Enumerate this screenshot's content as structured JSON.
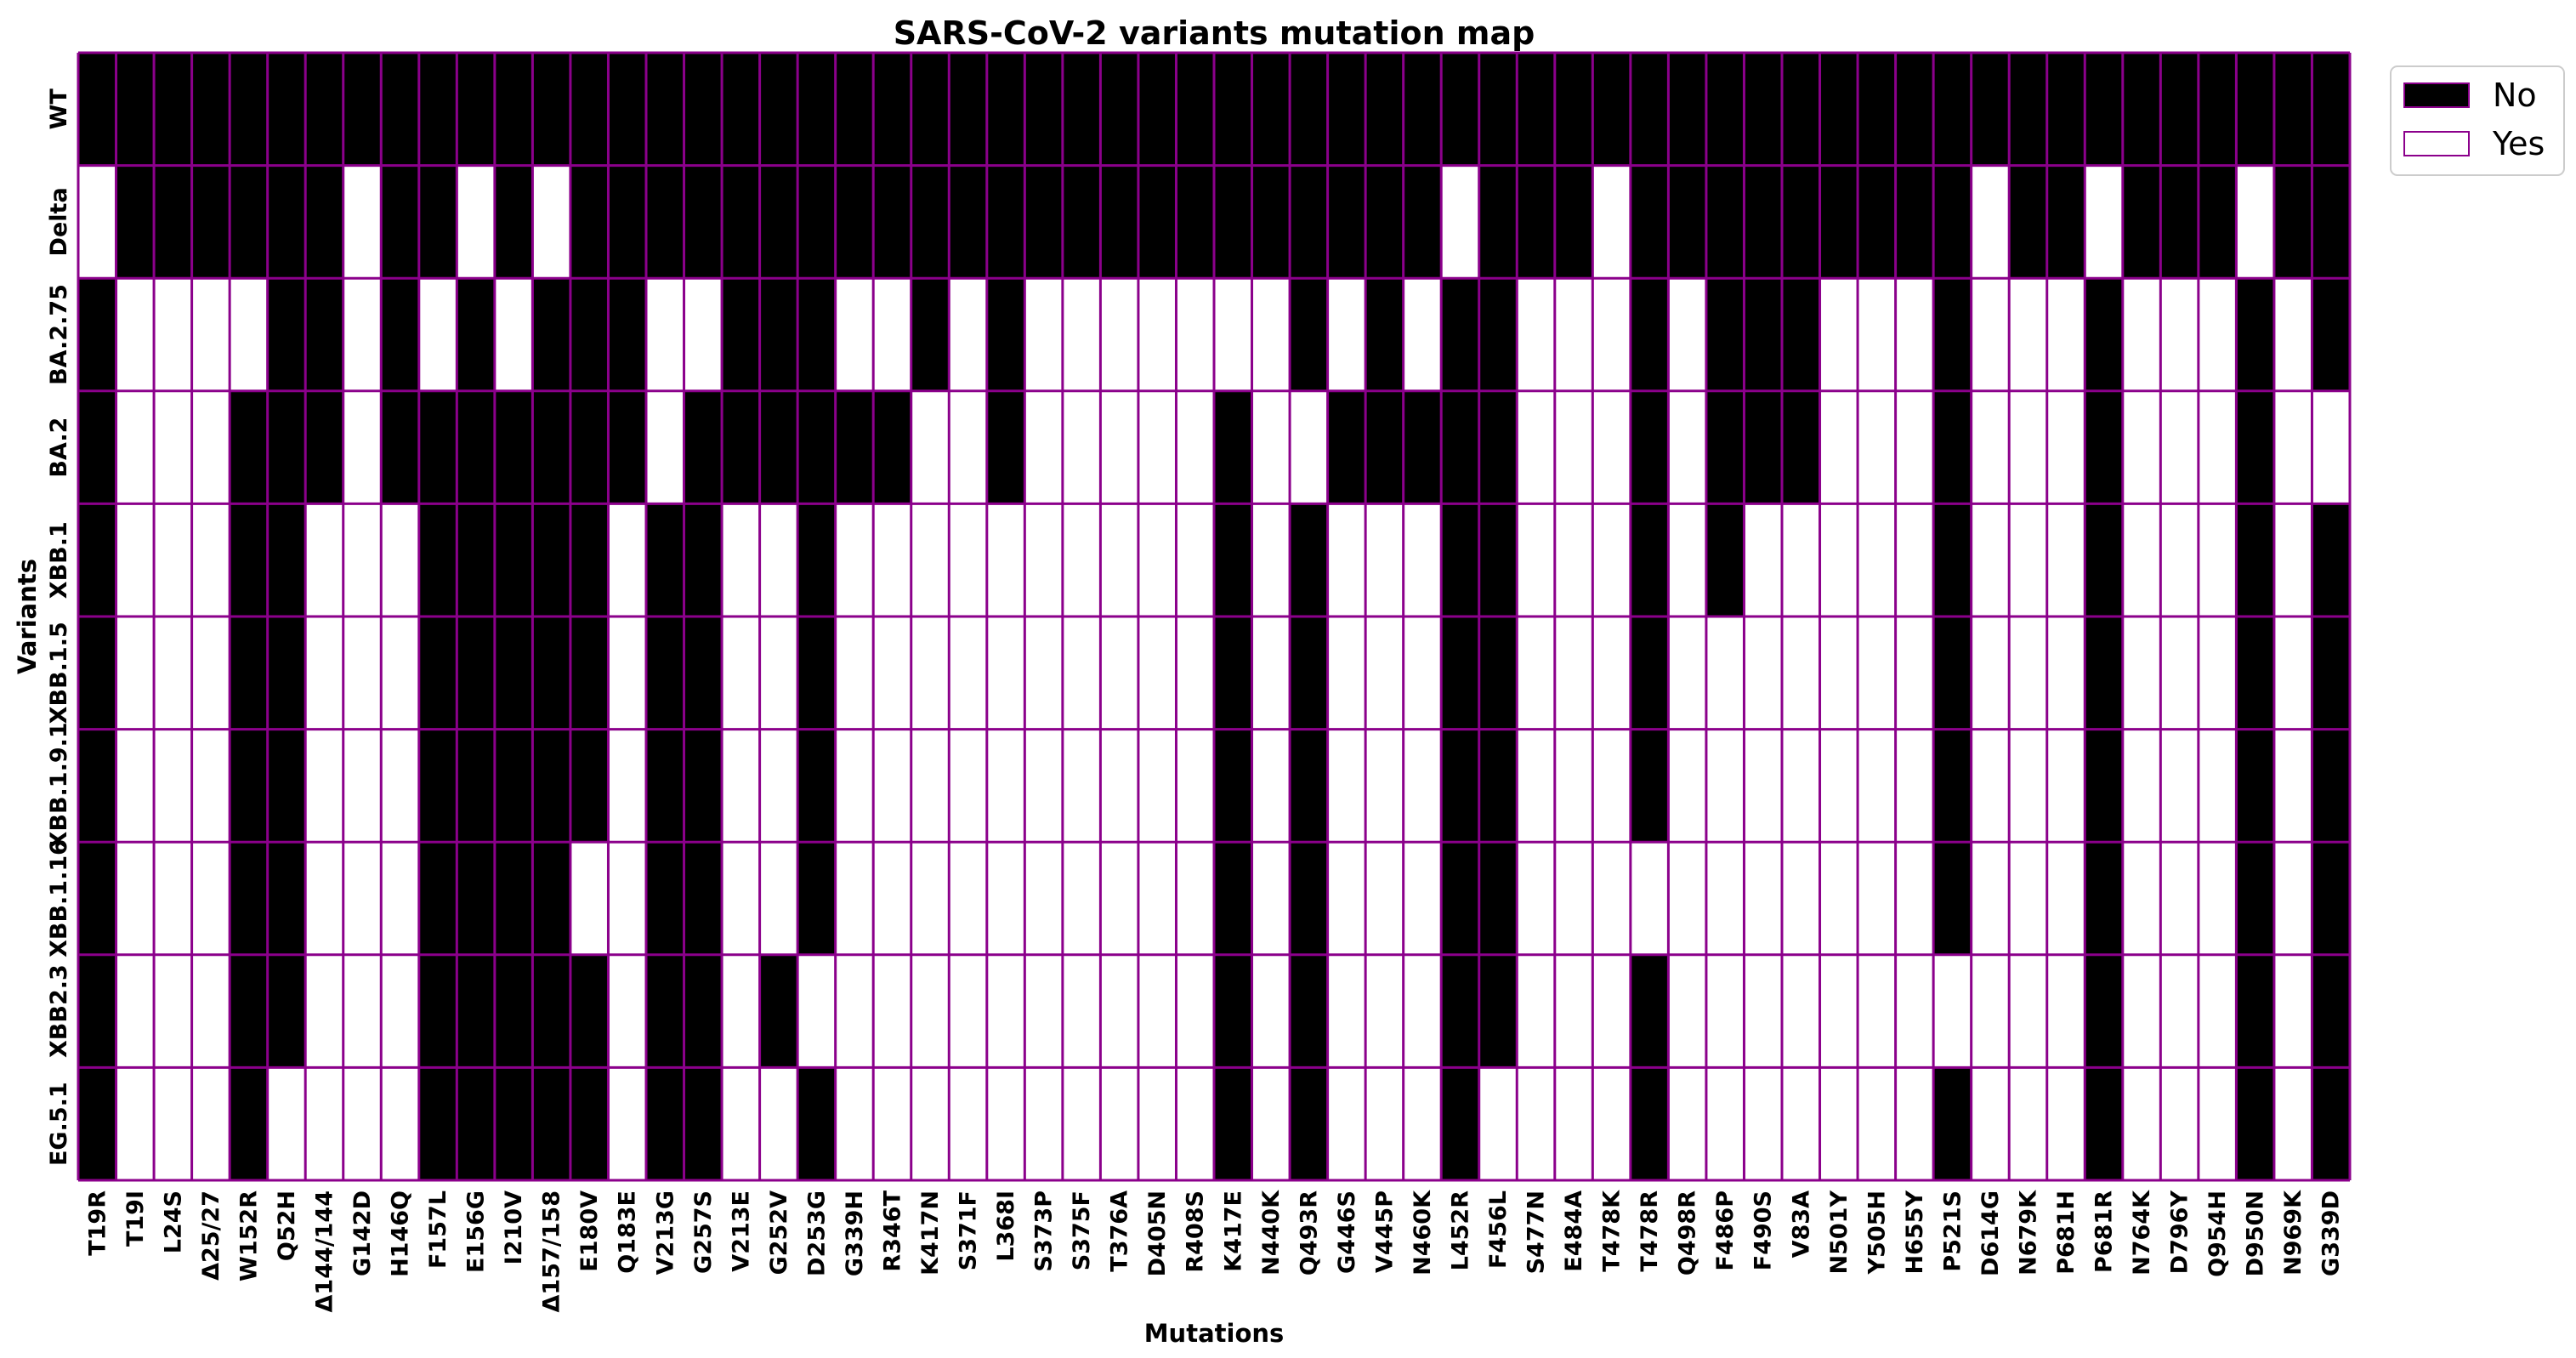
{
  "chart_data": {
    "type": "heatmap",
    "title": "SARS-CoV-2 variants mutation map",
    "xlabel": "Mutations",
    "ylabel": "Variants",
    "grid": true,
    "legend_position": "top-right-outside",
    "legend": [
      {
        "label": "No",
        "value": 1,
        "color": "#000000"
      },
      {
        "label": "Yes",
        "value": 0,
        "color": "#ffffff"
      }
    ],
    "colors": {
      "filled": "#000000",
      "empty": "#ffffff",
      "grid": "#8b008b"
    },
    "value_meaning": "1 = filled black cell, 0 = white cell",
    "x_categories": [
      "T19R",
      "T19I",
      "L24S",
      "Δ25/27",
      "W152R",
      "Q52H",
      "Δ144/144",
      "G142D",
      "H146Q",
      "F157L",
      "E156G",
      "I210V",
      "Δ157/158",
      "E180V",
      "Q183E",
      "V213G",
      "G257S",
      "V213E",
      "G252V",
      "D253G",
      "G339H",
      "R346T",
      "K417N",
      "S371F",
      "L368I",
      "S373P",
      "S375F",
      "T376A",
      "D405N",
      "R408S",
      "K417E",
      "N440K",
      "Q493R",
      "G446S",
      "V445P",
      "N460K",
      "L452R",
      "F456L",
      "S477N",
      "E484A",
      "T478K",
      "T478R",
      "Q498R",
      "F486P",
      "F490S",
      "V83A",
      "N501Y",
      "Y505H",
      "H655Y",
      "P521S",
      "D614G",
      "N679K",
      "P681H",
      "P681R",
      "N764K",
      "D796Y",
      "Q954H",
      "D950N",
      "N969K",
      "G339D"
    ],
    "y_categories": [
      "WT",
      "Delta",
      "BA.2.75",
      "BA.2",
      "XBB.1",
      "XBB.1.5",
      "XBB.1.9.1",
      "XBB.1.16",
      "XBB2.3",
      "EG.5.1"
    ],
    "matrix": [
      [
        1,
        1,
        1,
        1,
        1,
        1,
        1,
        1,
        1,
        1,
        1,
        1,
        1,
        1,
        1,
        1,
        1,
        1,
        1,
        1,
        1,
        1,
        1,
        1,
        1,
        1,
        1,
        1,
        1,
        1,
        1,
        1,
        1,
        1,
        1,
        1,
        1,
        1,
        1,
        1,
        1,
        1,
        1,
        1,
        1,
        1,
        1,
        1,
        1,
        1,
        1,
        1,
        1,
        1,
        1,
        1,
        1,
        1,
        1,
        1
      ],
      [
        0,
        1,
        1,
        1,
        1,
        1,
        1,
        0,
        1,
        1,
        0,
        1,
        0,
        1,
        1,
        1,
        1,
        1,
        1,
        1,
        1,
        1,
        1,
        1,
        1,
        1,
        1,
        1,
        1,
        1,
        1,
        1,
        1,
        1,
        1,
        1,
        0,
        1,
        1,
        1,
        0,
        1,
        1,
        1,
        1,
        1,
        1,
        1,
        1,
        1,
        0,
        1,
        1,
        0,
        1,
        1,
        1,
        0,
        1,
        1
      ],
      [
        1,
        0,
        0,
        0,
        0,
        1,
        1,
        0,
        1,
        0,
        1,
        0,
        1,
        1,
        1,
        0,
        0,
        1,
        1,
        1,
        0,
        0,
        1,
        0,
        1,
        0,
        0,
        0,
        0,
        0,
        0,
        0,
        1,
        0,
        1,
        0,
        1,
        1,
        0,
        0,
        0,
        1,
        0,
        1,
        1,
        1,
        0,
        0,
        0,
        1,
        0,
        0,
        0,
        1,
        0,
        0,
        0,
        1,
        0,
        1
      ],
      [
        1,
        0,
        0,
        0,
        1,
        1,
        1,
        0,
        1,
        1,
        1,
        1,
        1,
        1,
        1,
        0,
        1,
        1,
        1,
        1,
        1,
        1,
        0,
        0,
        1,
        0,
        0,
        0,
        0,
        0,
        1,
        0,
        0,
        1,
        1,
        1,
        1,
        1,
        0,
        0,
        0,
        1,
        0,
        1,
        1,
        1,
        0,
        0,
        0,
        1,
        0,
        0,
        0,
        1,
        0,
        0,
        0,
        1,
        0,
        0
      ],
      [
        1,
        0,
        0,
        0,
        1,
        1,
        0,
        0,
        0,
        1,
        1,
        1,
        1,
        1,
        0,
        1,
        1,
        0,
        0,
        1,
        0,
        0,
        0,
        0,
        0,
        0,
        0,
        0,
        0,
        0,
        1,
        0,
        1,
        0,
        0,
        0,
        1,
        1,
        0,
        0,
        0,
        1,
        0,
        1,
        0,
        0,
        0,
        0,
        0,
        1,
        0,
        0,
        0,
        1,
        0,
        0,
        0,
        1,
        0,
        1
      ],
      [
        1,
        0,
        0,
        0,
        1,
        1,
        0,
        0,
        0,
        1,
        1,
        1,
        1,
        1,
        0,
        1,
        1,
        0,
        0,
        1,
        0,
        0,
        0,
        0,
        0,
        0,
        0,
        0,
        0,
        0,
        1,
        0,
        1,
        0,
        0,
        0,
        1,
        1,
        0,
        0,
        0,
        1,
        0,
        0,
        0,
        0,
        0,
        0,
        0,
        1,
        0,
        0,
        0,
        1,
        0,
        0,
        0,
        1,
        0,
        1
      ],
      [
        1,
        0,
        0,
        0,
        1,
        1,
        0,
        0,
        0,
        1,
        1,
        1,
        1,
        1,
        0,
        1,
        1,
        0,
        0,
        1,
        0,
        0,
        0,
        0,
        0,
        0,
        0,
        0,
        0,
        0,
        1,
        0,
        1,
        0,
        0,
        0,
        1,
        1,
        0,
        0,
        0,
        1,
        0,
        0,
        0,
        0,
        0,
        0,
        0,
        1,
        0,
        0,
        0,
        1,
        0,
        0,
        0,
        1,
        0,
        1
      ],
      [
        1,
        0,
        0,
        0,
        1,
        1,
        0,
        0,
        0,
        1,
        1,
        1,
        1,
        0,
        0,
        1,
        1,
        0,
        0,
        1,
        0,
        0,
        0,
        0,
        0,
        0,
        0,
        0,
        0,
        0,
        1,
        0,
        1,
        0,
        0,
        0,
        1,
        1,
        0,
        0,
        0,
        0,
        0,
        0,
        0,
        0,
        0,
        0,
        0,
        1,
        0,
        0,
        0,
        1,
        0,
        0,
        0,
        1,
        0,
        1
      ],
      [
        1,
        0,
        0,
        0,
        1,
        1,
        0,
        0,
        0,
        1,
        1,
        1,
        1,
        1,
        0,
        1,
        1,
        0,
        1,
        0,
        0,
        0,
        0,
        0,
        0,
        0,
        0,
        0,
        0,
        0,
        1,
        0,
        1,
        0,
        0,
        0,
        1,
        1,
        0,
        0,
        0,
        1,
        0,
        0,
        0,
        0,
        0,
        0,
        0,
        0,
        0,
        0,
        0,
        1,
        0,
        0,
        0,
        1,
        0,
        1
      ],
      [
        1,
        0,
        0,
        0,
        1,
        0,
        0,
        0,
        0,
        1,
        1,
        1,
        1,
        1,
        0,
        1,
        1,
        0,
        0,
        1,
        0,
        0,
        0,
        0,
        0,
        0,
        0,
        0,
        0,
        0,
        1,
        0,
        1,
        0,
        0,
        0,
        1,
        0,
        0,
        0,
        0,
        1,
        0,
        0,
        0,
        0,
        0,
        0,
        0,
        1,
        0,
        0,
        0,
        1,
        0,
        0,
        0,
        1,
        0,
        1
      ]
    ]
  }
}
